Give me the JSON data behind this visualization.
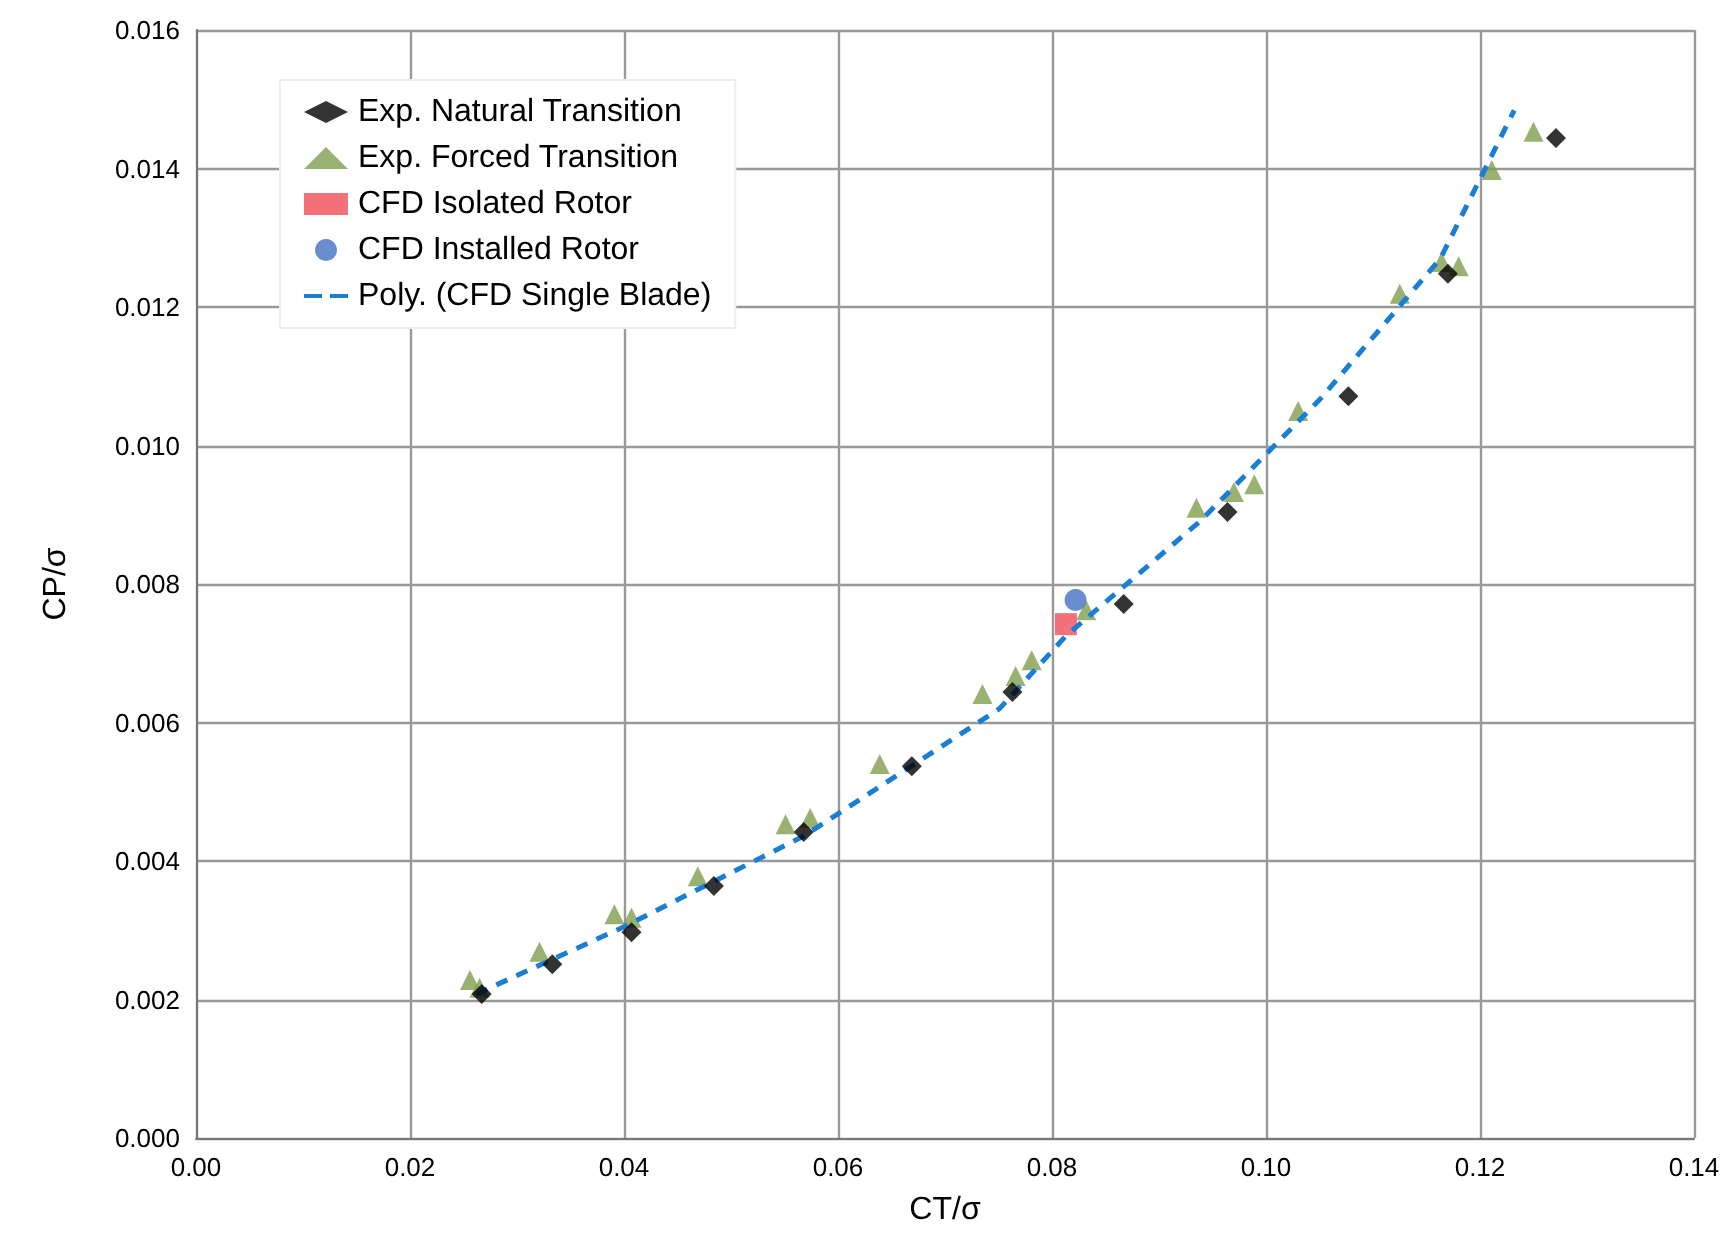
{
  "chart_data": {
    "type": "scatter",
    "xlabel": "CT/σ",
    "ylabel": "CP/σ",
    "xlim": [
      0,
      0.14
    ],
    "ylim": [
      0,
      0.016
    ],
    "xticks": [
      {
        "value": 0,
        "label": "0.00"
      },
      {
        "value": 0.02,
        "label": "0.02"
      },
      {
        "value": 0.04,
        "label": "0.04"
      },
      {
        "value": 0.06,
        "label": "0.06"
      },
      {
        "value": 0.08,
        "label": "0.08"
      },
      {
        "value": 0.1,
        "label": "0.10"
      },
      {
        "value": 0.12,
        "label": "0.12"
      },
      {
        "value": 0.14,
        "label": "0.14"
      }
    ],
    "yticks": [
      {
        "value": 0,
        "label": "0.000"
      },
      {
        "value": 0.002,
        "label": "0.002"
      },
      {
        "value": 0.004,
        "label": "0.004"
      },
      {
        "value": 0.006,
        "label": "0.006"
      },
      {
        "value": 0.008,
        "label": "0.008"
      },
      {
        "value": 0.01,
        "label": "0.010"
      },
      {
        "value": 0.012,
        "label": "0.012"
      },
      {
        "value": 0.014,
        "label": "0.014"
      },
      {
        "value": 0.016,
        "label": "0.016"
      }
    ],
    "grid": true,
    "legend": "top left",
    "series": [
      {
        "name": "Exp. Natural Transition",
        "marker": "diamond",
        "color": "#000000",
        "x": [
          0.0267,
          0.0333,
          0.0407,
          0.0484,
          0.0568,
          0.0669,
          0.0763,
          0.0867,
          0.0964,
          0.1077,
          0.117,
          0.1271
        ],
        "values": [
          0.00208,
          0.00251,
          0.00297,
          0.00364,
          0.00442,
          0.00537,
          0.00644,
          0.00771,
          0.00904,
          0.01071,
          0.01248,
          0.01444
        ]
      },
      {
        "name": "Exp. Forced Transition",
        "marker": "triangle",
        "color": "#7f9f4f",
        "x": [
          0.0256,
          0.0265,
          0.0321,
          0.0391,
          0.0407,
          0.0469,
          0.0551,
          0.0574,
          0.0639,
          0.0735,
          0.0766,
          0.0781,
          0.0832,
          0.0935,
          0.097,
          0.0989,
          0.103,
          0.1125,
          0.1164,
          0.118,
          0.1211,
          0.125
        ],
        "values": [
          0.00228,
          0.00217,
          0.00269,
          0.00323,
          0.00318,
          0.00378,
          0.00453,
          0.00462,
          0.0054,
          0.00641,
          0.00667,
          0.0069,
          0.00762,
          0.0091,
          0.00933,
          0.00944,
          0.0105,
          0.01219,
          0.01265,
          0.01259,
          0.01398,
          0.01453
        ]
      },
      {
        "name": "CFD Isolated Rotor",
        "marker": "square",
        "color": "#f04e5a",
        "x": [
          0.0813
        ],
        "values": [
          0.00742
        ]
      },
      {
        "name": "CFD Installed Rotor",
        "marker": "circle",
        "color": "#4472c4",
        "x": [
          0.0822
        ],
        "values": [
          0.00777
        ]
      },
      {
        "name": "Poly. (CFD Single Blade)",
        "type": "line",
        "marker": "none",
        "line_style": "dashed",
        "color": "#1a7fd4",
        "x": [
          0.0262,
          0.04,
          0.0568,
          0.0751,
          0.0813,
          0.0938,
          0.105,
          0.1163,
          0.1232
        ],
        "values": [
          0.00208,
          0.00305,
          0.00436,
          0.0062,
          0.00725,
          0.0089,
          0.01066,
          0.0127,
          0.01484
        ]
      }
    ]
  }
}
